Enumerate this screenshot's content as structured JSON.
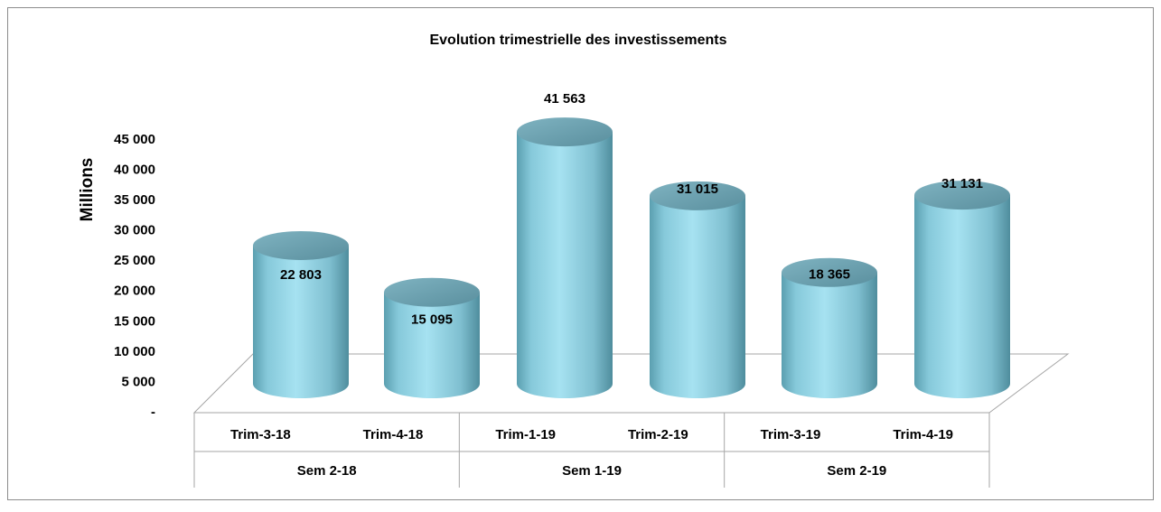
{
  "chart_data": {
    "type": "bar",
    "title": "Evolution trimestrielle  des investissements",
    "y_label": "Millions",
    "categories": [
      "Trim-3-18",
      "Trim-4-18",
      "Trim-1-19",
      "Trim-2-19",
      "Trim-3-19",
      "Trim-4-19"
    ],
    "groups": [
      "Sem 2-18",
      "Sem 1-19",
      "Sem 2-19"
    ],
    "values": [
      22803,
      15095,
      41563,
      31015,
      18365,
      31131
    ],
    "value_labels": [
      "22 803",
      "15 095",
      "41 563",
      "31 015",
      "18 365",
      "31 131"
    ],
    "color": "#92d5e6",
    "ylim": [
      0,
      45000
    ],
    "yticks": [
      {
        "value": 0,
        "label": "-"
      },
      {
        "value": 5000,
        "label": "5 000"
      },
      {
        "value": 10000,
        "label": "10 000"
      },
      {
        "value": 15000,
        "label": "15 000"
      },
      {
        "value": 20000,
        "label": "20 000"
      },
      {
        "value": 25000,
        "label": "25 000"
      },
      {
        "value": 30000,
        "label": "30 000"
      },
      {
        "value": 35000,
        "label": "35 000"
      },
      {
        "value": 40000,
        "label": "40 000"
      },
      {
        "value": 45000,
        "label": "45 000"
      }
    ]
  }
}
